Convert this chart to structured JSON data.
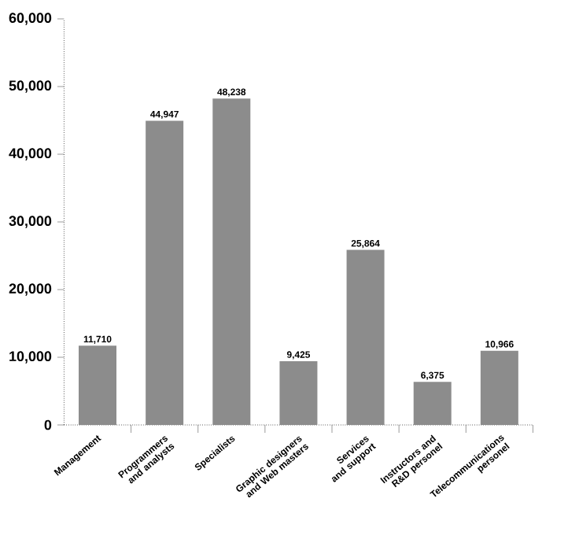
{
  "chart_data": {
    "type": "bar",
    "categories": [
      "Management",
      "Programmers and analysts",
      "Specialists",
      "Graphic designers and Web masters",
      "Services and support",
      "Instructors and R&D personel",
      "Telecommunications personel"
    ],
    "values": [
      11710,
      44947,
      48238,
      9425,
      25864,
      6375,
      10966
    ],
    "value_labels": [
      "11,710",
      "44,947",
      "48,238",
      "9,425",
      "25,864",
      "6,375",
      "10,966"
    ],
    "color": "#8c8c8c",
    "ylim": [
      0,
      60000
    ],
    "yticks": [
      0,
      {
        "value": 10000,
        "label": "10,000"
      },
      {
        "value": 20000,
        "label": "20,000"
      },
      {
        "value": 30000,
        "label": "30,000"
      },
      {
        "value": 40000,
        "label": "40,000"
      },
      {
        "value": 50000,
        "label": "50,000"
      },
      {
        "value": 60000,
        "label": "60,000"
      }
    ],
    "grid": false,
    "legend": false
  }
}
